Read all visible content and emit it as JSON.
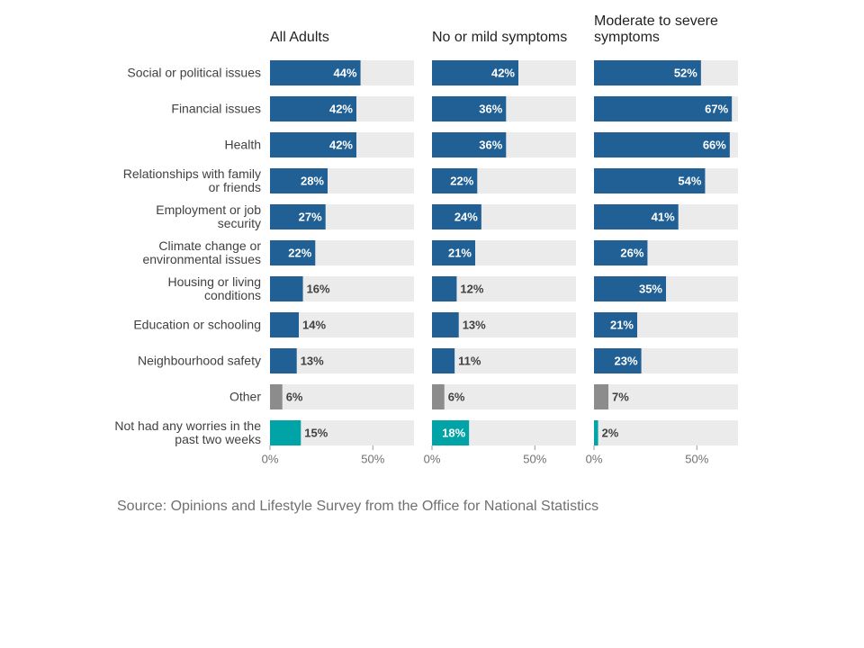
{
  "chart_data": [
    {
      "type": "bar",
      "title": "All Adults",
      "categories": [
        "Social or political issues",
        "Financial issues",
        "Health",
        "Relationships with family or friends",
        "Employment or job security",
        "Climate change or environmental issues",
        "Housing or living conditions",
        "Education or schooling",
        "Neighbourhood safety",
        "Other",
        "Not had any worries in the past two weeks"
      ],
      "values": [
        44,
        42,
        42,
        28,
        27,
        22,
        16,
        14,
        13,
        6,
        15
      ],
      "value_labels": [
        "44%",
        "42%",
        "42%",
        "28%",
        "27%",
        "22%",
        "16%",
        "14%",
        "13%",
        "6%",
        "15%"
      ],
      "colors": [
        "#206095",
        "#206095",
        "#206095",
        "#206095",
        "#206095",
        "#206095",
        "#206095",
        "#206095",
        "#206095",
        "#8c8c8c",
        "#00a3a6"
      ],
      "xlim": [
        0,
        70
      ],
      "xticks": [
        {
          "value": 0,
          "label": "0%"
        },
        {
          "value": 50,
          "label": "50%"
        }
      ]
    },
    {
      "type": "bar",
      "title": "No or mild symptoms",
      "values": [
        42,
        36,
        36,
        22,
        24,
        21,
        12,
        13,
        11,
        6,
        18
      ],
      "value_labels": [
        "42%",
        "36%",
        "36%",
        "22%",
        "24%",
        "21%",
        "12%",
        "13%",
        "11%",
        "6%",
        "18%"
      ],
      "colors": [
        "#206095",
        "#206095",
        "#206095",
        "#206095",
        "#206095",
        "#206095",
        "#206095",
        "#206095",
        "#206095",
        "#8c8c8c",
        "#00a3a6"
      ],
      "xlim": [
        0,
        70
      ],
      "xticks": [
        {
          "value": 0,
          "label": "0%"
        },
        {
          "value": 50,
          "label": "50%"
        }
      ]
    },
    {
      "type": "bar",
      "title": "Moderate to severe symptoms",
      "values": [
        52,
        67,
        66,
        54,
        41,
        26,
        35,
        21,
        23,
        7,
        2
      ],
      "value_labels": [
        "52%",
        "67%",
        "66%",
        "54%",
        "41%",
        "26%",
        "35%",
        "21%",
        "23%",
        "7%",
        "2%"
      ],
      "colors": [
        "#206095",
        "#206095",
        "#206095",
        "#206095",
        "#206095",
        "#206095",
        "#206095",
        "#206095",
        "#206095",
        "#8c8c8c",
        "#00a3a6"
      ],
      "xlim": [
        0,
        70
      ],
      "xticks": [
        {
          "value": 0,
          "label": "0%"
        },
        {
          "value": 50,
          "label": "50%"
        }
      ]
    }
  ],
  "source": "Source: Opinions and Lifestyle Survey from the Office for National Statistics"
}
